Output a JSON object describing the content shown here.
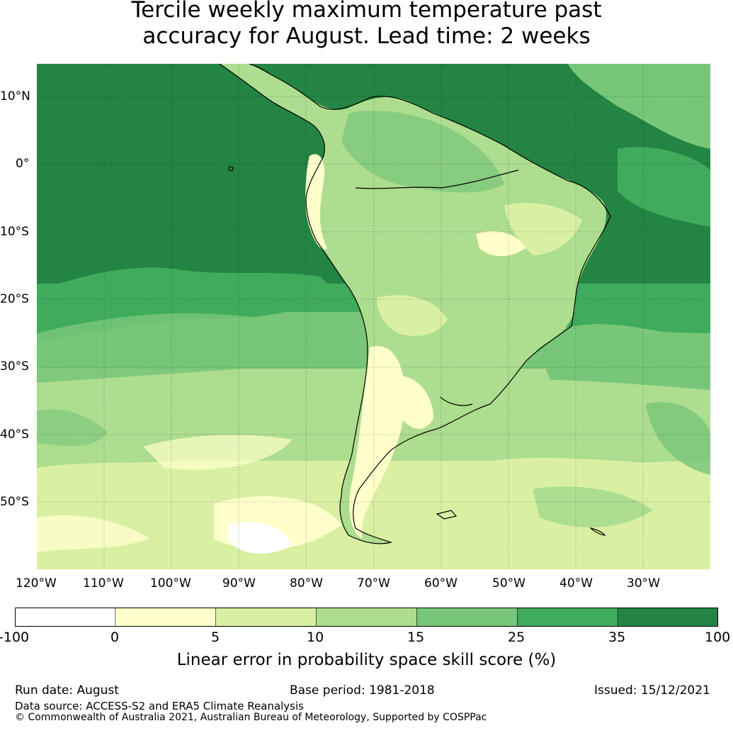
{
  "title": {
    "line1": "Tercile weekly maximum temperature past",
    "line2": "accuracy for August. Lead time: 2 weeks"
  },
  "map": {
    "region": "South America and surrounding oceans",
    "lat_labels": [
      "10°N",
      "0°",
      "10°S",
      "20°S",
      "30°S",
      "40°S",
      "50°S"
    ],
    "lon_labels": [
      "120°W",
      "110°W",
      "100°W",
      "90°W",
      "80°W",
      "70°W",
      "60°W",
      "50°W",
      "40°W",
      "30°W"
    ],
    "colors": {
      "lt0": "#ffffff",
      "b0_5": "#ffffcc",
      "b5_10": "#d9f0a3",
      "b10_15": "#addd8e",
      "b15_25": "#78c679",
      "b25_35": "#41ab5d",
      "b35_100": "#238443"
    }
  },
  "colorbar": {
    "ticks": [
      "-100",
      "0",
      "5",
      "10",
      "15",
      "25",
      "35",
      "100"
    ],
    "colors": [
      "#ffffff",
      "#ffffcc",
      "#d9f0a3",
      "#addd8e",
      "#78c679",
      "#41ab5d",
      "#238443"
    ],
    "label": "Linear error in probability space skill score (%)"
  },
  "footer": {
    "run_date": "Run date: August",
    "base_period": "Base period: 1981-2018",
    "issued": "Issued: 15/12/2021",
    "data_source": "Data source: ACCESS-S2 and ERA5 Climate Reanalysis",
    "copyright": "© Commonwealth of Australia 2021, Australian Bureau of Meteorology, Supported by COSPPac"
  }
}
